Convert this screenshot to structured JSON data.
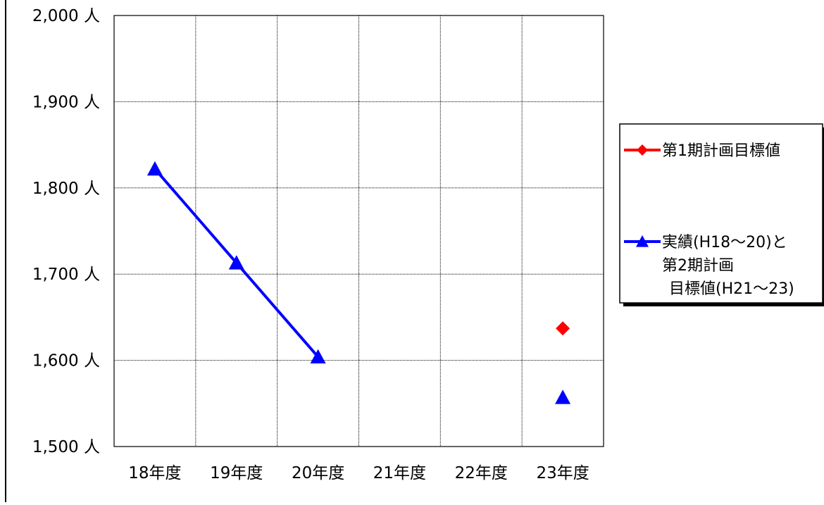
{
  "chart_data": {
    "type": "line",
    "categories": [
      "18年度",
      "19年度",
      "20年度",
      "21年度",
      "22年度",
      "23年度"
    ],
    "ylim": [
      1500,
      2000
    ],
    "yticks": [
      1500,
      1600,
      1700,
      1800,
      1900,
      2000
    ],
    "ytick_labels": [
      "1,500 人",
      "1,600 人",
      "1,700 人",
      "1,800 人",
      "1,900 人",
      "2,000 人"
    ],
    "grid": true,
    "legend_position": "right",
    "series": [
      {
        "name": "第1期計画目標値",
        "color": "#ff0000",
        "marker": "diamond",
        "values": [
          null,
          null,
          null,
          null,
          null,
          1637
        ]
      },
      {
        "name": "実績(H18～20)と第2期計画目標値(H21～23)",
        "legend_lines": [
          "実績(H18～20)と",
          "第2期計画",
          "目標値(H21～23)"
        ],
        "color": "#0000ff",
        "marker": "triangle",
        "values": [
          1822,
          1713,
          1604,
          null,
          null,
          1557
        ]
      }
    ]
  }
}
